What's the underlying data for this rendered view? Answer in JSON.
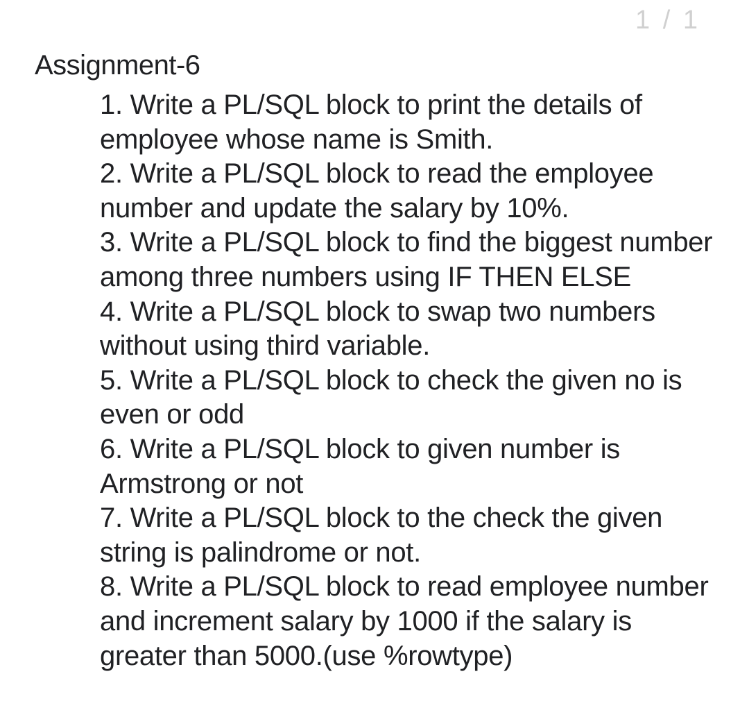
{
  "page_indicator": "1 / 1",
  "title": "Assignment-6",
  "items": [
    "1. Write a PL/SQL block to print the details of employee whose name is Smith.",
    "2. Write a PL/SQL block to read the employee number and update the salary by 10%.",
    "3. Write a PL/SQL block to find the biggest number among three numbers using IF THEN ELSE",
    "4. Write a PL/SQL block to swap two numbers without using third variable.",
    "5. Write a PL/SQL block to check the given no is even or odd",
    "6. Write a PL/SQL block to given number is Armstrong or not",
    "7. Write a PL/SQL block to the check the given string is palindrome or not.",
    "8. Write a PL/SQL block to read employee number and increment salary by 1000 if the  salary is greater than 5000.(use %rowtype)"
  ]
}
